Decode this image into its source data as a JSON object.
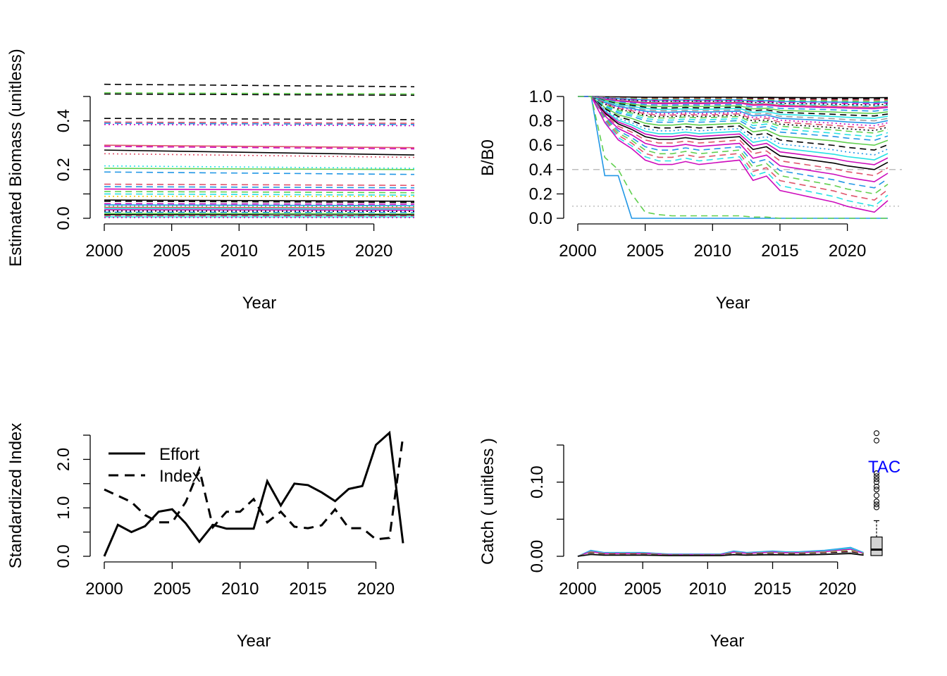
{
  "chart_data": [
    {
      "panel": "top-left",
      "type": "line",
      "title": "",
      "xlabel": "Year",
      "ylabel": "Estimated Biomass (unitless)",
      "xlim": [
        2000,
        2023
      ],
      "ylim": [
        0,
        0.5
      ],
      "x_ticks": [
        "2000",
        "2005",
        "2010",
        "2015",
        "2020"
      ],
      "y_ticks": [
        "0.0",
        "0.2",
        "0.4"
      ],
      "x": [
        2000,
        2023
      ],
      "series_levels": [
        {
          "start": 0.55,
          "end": 0.54,
          "color": "#000000",
          "style": "dashed"
        },
        {
          "start": 0.515,
          "end": 0.51,
          "color": "#61d04f",
          "style": "dashed"
        },
        {
          "start": 0.51,
          "end": 0.505,
          "color": "#000000",
          "style": "dashed"
        },
        {
          "start": 0.41,
          "end": 0.405,
          "color": "#000000",
          "style": "dashed"
        },
        {
          "start": 0.395,
          "end": 0.39,
          "color": "#df536b",
          "style": "dashed"
        },
        {
          "start": 0.39,
          "end": 0.385,
          "color": "#2297e6",
          "style": "dashed"
        },
        {
          "start": 0.385,
          "end": 0.38,
          "color": "#cd0bbc",
          "style": "dotted"
        },
        {
          "start": 0.3,
          "end": 0.29,
          "color": "#df536b",
          "style": "solid"
        },
        {
          "start": 0.295,
          "end": 0.285,
          "color": "#cd0bbc",
          "style": "dashed"
        },
        {
          "start": 0.28,
          "end": 0.26,
          "color": "#000000",
          "style": "solid"
        },
        {
          "start": 0.265,
          "end": 0.25,
          "color": "#df536b",
          "style": "dotted"
        },
        {
          "start": 0.215,
          "end": 0.205,
          "color": "#28e2e5",
          "style": "dotted"
        },
        {
          "start": 0.205,
          "end": 0.2,
          "color": "#61d04f",
          "style": "solid"
        },
        {
          "start": 0.19,
          "end": 0.18,
          "color": "#2297e6",
          "style": "dashed"
        },
        {
          "start": 0.14,
          "end": 0.135,
          "color": "#df536b",
          "style": "dashed"
        },
        {
          "start": 0.13,
          "end": 0.125,
          "color": "#2297e6",
          "style": "dashed"
        },
        {
          "start": 0.12,
          "end": 0.115,
          "color": "#cd0bbc",
          "style": "solid"
        },
        {
          "start": 0.11,
          "end": 0.105,
          "color": "#61d04f",
          "style": "dashed"
        },
        {
          "start": 0.1,
          "end": 0.095,
          "color": "#28e2e5",
          "style": "dashed"
        },
        {
          "start": 0.09,
          "end": 0.09,
          "color": "#f5c710",
          "style": "dotted"
        },
        {
          "start": 0.075,
          "end": 0.07,
          "color": "#000000",
          "style": "solid"
        },
        {
          "start": 0.07,
          "end": 0.065,
          "color": "#000000",
          "style": "dashed"
        },
        {
          "start": 0.06,
          "end": 0.058,
          "color": "#cd0bbc",
          "style": "dashed"
        },
        {
          "start": 0.055,
          "end": 0.052,
          "color": "#2297e6",
          "style": "solid"
        },
        {
          "start": 0.05,
          "end": 0.048,
          "color": "#61d04f",
          "style": "dotted"
        },
        {
          "start": 0.045,
          "end": 0.043,
          "color": "#df536b",
          "style": "solid"
        },
        {
          "start": 0.04,
          "end": 0.038,
          "color": "#28e2e5",
          "style": "solid"
        },
        {
          "start": 0.035,
          "end": 0.033,
          "color": "#cd0bbc",
          "style": "solid"
        },
        {
          "start": 0.03,
          "end": 0.028,
          "color": "#000000",
          "style": "dotted"
        },
        {
          "start": 0.025,
          "end": 0.024,
          "color": "#2297e6",
          "style": "dashed"
        },
        {
          "start": 0.02,
          "end": 0.019,
          "color": "#61d04f",
          "style": "solid"
        },
        {
          "start": 0.015,
          "end": 0.014,
          "color": "#000000",
          "style": "solid"
        },
        {
          "start": 0.01,
          "end": 0.01,
          "color": "#df536b",
          "style": "dashed"
        },
        {
          "start": 0.006,
          "end": 0.006,
          "color": "#28e2e5",
          "style": "solid"
        },
        {
          "start": 0.003,
          "end": 0.003,
          "color": "#cd0bbc",
          "style": "dotted"
        }
      ]
    },
    {
      "panel": "top-right",
      "type": "line",
      "title": "",
      "xlabel": "Year",
      "ylabel": "B/B0",
      "xlim": [
        2000,
        2023
      ],
      "ylim": [
        0,
        1
      ],
      "x_ticks": [
        "2000",
        "2005",
        "2010",
        "2015",
        "2020"
      ],
      "y_ticks": [
        "0.0",
        "0.2",
        "0.4",
        "0.6",
        "0.8",
        "1.0"
      ],
      "reference_lines": [
        {
          "y": 0.4,
          "color": "#bebebe",
          "style": "dashed"
        },
        {
          "y": 0.1,
          "color": "#bebebe",
          "style": "dotted"
        }
      ],
      "x": [
        2000,
        2001,
        2002,
        2003,
        2004,
        2005,
        2006,
        2007,
        2008,
        2009,
        2010,
        2011,
        2012,
        2013,
        2014,
        2015,
        2016,
        2017,
        2018,
        2019,
        2020,
        2021,
        2022,
        2023
      ],
      "trajectory_shape": [
        0,
        0,
        0.18,
        0.3,
        0.36,
        0.44,
        0.47,
        0.47,
        0.45,
        0.47,
        0.46,
        0.45,
        0.44,
        0.58,
        0.55,
        0.65,
        0.67,
        0.69,
        0.71,
        0.73,
        0.76,
        0.78,
        0.8,
        0.72
      ],
      "series_depletion": [
        {
          "d": 0.01,
          "color": "#000000",
          "style": "solid"
        },
        {
          "d": 0.02,
          "color": "#000000",
          "style": "dashed"
        },
        {
          "d": 0.03,
          "color": "#df536b",
          "style": "dashed"
        },
        {
          "d": 0.04,
          "color": "#61d04f",
          "style": "dashed"
        },
        {
          "d": 0.05,
          "color": "#2297e6",
          "style": "solid"
        },
        {
          "d": 0.06,
          "color": "#cd0bbc",
          "style": "dashed"
        },
        {
          "d": 0.07,
          "color": "#000000",
          "style": "dotted"
        },
        {
          "d": 0.08,
          "color": "#28e2e5",
          "style": "dashed"
        },
        {
          "d": 0.09,
          "color": "#df536b",
          "style": "solid"
        },
        {
          "d": 0.1,
          "color": "#cd0bbc",
          "style": "solid"
        },
        {
          "d": 0.12,
          "color": "#2297e6",
          "style": "dashed"
        },
        {
          "d": 0.14,
          "color": "#61d04f",
          "style": "solid"
        },
        {
          "d": 0.16,
          "color": "#000000",
          "style": "dashed"
        },
        {
          "d": 0.18,
          "color": "#28e2e5",
          "style": "solid"
        },
        {
          "d": 0.2,
          "color": "#9e9e9e",
          "style": "dashed"
        },
        {
          "d": 0.22,
          "color": "#2297e6",
          "style": "solid"
        },
        {
          "d": 0.24,
          "color": "#cd0bbc",
          "style": "dotted"
        },
        {
          "d": 0.26,
          "color": "#df536b",
          "style": "dashed"
        },
        {
          "d": 0.28,
          "color": "#000000",
          "style": "dotted"
        },
        {
          "d": 0.3,
          "color": "#61d04f",
          "style": "dashed"
        },
        {
          "d": 0.33,
          "color": "#28e2e5",
          "style": "dashed"
        },
        {
          "d": 0.36,
          "color": "#2297e6",
          "style": "dashed"
        },
        {
          "d": 0.4,
          "color": "#61d04f",
          "style": "solid"
        },
        {
          "d": 0.44,
          "color": "#000000",
          "style": "dashed"
        },
        {
          "d": 0.48,
          "color": "#2297e6",
          "style": "dotted"
        },
        {
          "d": 0.52,
          "color": "#28e2e5",
          "style": "solid"
        },
        {
          "d": 0.56,
          "color": "#cd0bbc",
          "style": "solid"
        },
        {
          "d": 0.6,
          "color": "#000000",
          "style": "solid"
        },
        {
          "d": 0.65,
          "color": "#df536b",
          "style": "dashed"
        },
        {
          "d": 0.7,
          "color": "#cd0bbc",
          "style": "solid"
        },
        {
          "d": 0.75,
          "color": "#2297e6",
          "style": "dashed"
        },
        {
          "d": 0.8,
          "color": "#61d04f",
          "style": "dashed"
        },
        {
          "d": 0.85,
          "color": "#df536b",
          "style": "dashed"
        },
        {
          "d": 0.9,
          "color": "#28e2e5",
          "style": "dashed"
        },
        {
          "d": 0.95,
          "color": "#cd0bbc",
          "style": "solid"
        }
      ],
      "collapse_series": [
        {
          "values": [
            1,
            1,
            0.35,
            0.35,
            0.0,
            0.0,
            0.0,
            0.0,
            0.0,
            0.0,
            0.0,
            0.0,
            0.0,
            0.0,
            0.0,
            0.0,
            0.0,
            0.0,
            0.0,
            0.0,
            0.0,
            0.0,
            0.0,
            0.0
          ],
          "color": "#2297e6",
          "style": "solid"
        },
        {
          "values": [
            1,
            1,
            0.5,
            0.4,
            0.2,
            0.05,
            0.03,
            0.02,
            0.02,
            0.02,
            0.02,
            0.02,
            0.02,
            0.01,
            0.01,
            0.0,
            0.0,
            0.0,
            0.0,
            0.0,
            0.0,
            0.0,
            0.0,
            0.0
          ],
          "color": "#61d04f",
          "style": "dashed"
        }
      ]
    },
    {
      "panel": "bottom-left",
      "type": "line",
      "title": "",
      "xlabel": "Year",
      "ylabel": "Standardized Index",
      "xlim": [
        2000,
        2022
      ],
      "ylim": [
        0,
        2.5
      ],
      "x_ticks": [
        "2000",
        "2005",
        "2010",
        "2015",
        "2020"
      ],
      "y_ticks": [
        "0.0",
        "1.0",
        "2.0"
      ],
      "legend_position": "top-left",
      "x": [
        2000,
        2001,
        2002,
        2003,
        2004,
        2005,
        2006,
        2007,
        2008,
        2009,
        2010,
        2011,
        2012,
        2013,
        2014,
        2015,
        2016,
        2017,
        2018,
        2019,
        2020,
        2021,
        2022
      ],
      "series": [
        {
          "name": "Effort",
          "style": "solid",
          "color": "#000000",
          "values": [
            0.0,
            0.65,
            0.5,
            0.62,
            0.92,
            0.97,
            0.68,
            0.3,
            0.65,
            0.57,
            0.57,
            0.57,
            1.55,
            1.05,
            1.5,
            1.47,
            1.32,
            1.14,
            1.39,
            1.45,
            2.3,
            2.55,
            0.27
          ]
        },
        {
          "name": "Index",
          "style": "dashed",
          "color": "#000000",
          "values": [
            1.38,
            1.25,
            1.12,
            0.85,
            0.7,
            0.7,
            1.12,
            1.8,
            0.6,
            0.92,
            0.92,
            1.18,
            0.7,
            0.92,
            0.61,
            0.58,
            0.64,
            0.97,
            0.58,
            0.58,
            0.35,
            0.38,
            2.48
          ]
        }
      ]
    },
    {
      "panel": "bottom-right",
      "type": "line",
      "title": "",
      "xlabel": "Year",
      "ylabel": "Catch ( unitless )",
      "xlim": [
        2000,
        2023
      ],
      "ylim": [
        0,
        0.15
      ],
      "x_ticks": [
        "2000",
        "2005",
        "2010",
        "2015",
        "2020"
      ],
      "y_ticks": [
        "0.00",
        "0.10"
      ],
      "x": [
        2000,
        2001,
        2002,
        2003,
        2004,
        2005,
        2006,
        2007,
        2008,
        2009,
        2010,
        2011,
        2012,
        2013,
        2014,
        2015,
        2016,
        2017,
        2018,
        2019,
        2020,
        2021,
        2022
      ],
      "catch_shape": [
        0.0,
        0.008,
        0.005,
        0.005,
        0.005,
        0.005,
        0.004,
        0.003,
        0.003,
        0.003,
        0.003,
        0.003,
        0.007,
        0.005,
        0.006,
        0.007,
        0.006,
        0.006,
        0.007,
        0.008,
        0.01,
        0.012,
        0.005
      ],
      "series_scales": [
        {
          "k": 1.0,
          "color": "#2297e6",
          "style": "solid"
        },
        {
          "k": 0.9,
          "color": "#28e2e5",
          "style": "solid"
        },
        {
          "k": 0.8,
          "color": "#cd0bbc",
          "style": "solid"
        },
        {
          "k": 0.7,
          "color": "#61d04f",
          "style": "dashed"
        },
        {
          "k": 0.6,
          "color": "#df536b",
          "style": "dashed"
        },
        {
          "k": 0.5,
          "color": "#000000",
          "style": "dashed"
        },
        {
          "k": 0.4,
          "color": "#9e9e9e",
          "style": "solid"
        },
        {
          "k": 0.3,
          "color": "#000000",
          "style": "solid"
        }
      ],
      "tac_label": "TAC",
      "tac_label_color": "#0000ff",
      "tac_boxplot": {
        "x": 2023,
        "whisker_low": 0.0,
        "q1": 0.001,
        "median": 0.009,
        "q3": 0.026,
        "whisker_high": 0.048,
        "outliers": [
          0.066,
          0.07,
          0.074,
          0.082,
          0.09,
          0.094,
          0.1,
          0.104,
          0.108,
          0.112,
          0.156,
          0.166
        ]
      }
    }
  ]
}
